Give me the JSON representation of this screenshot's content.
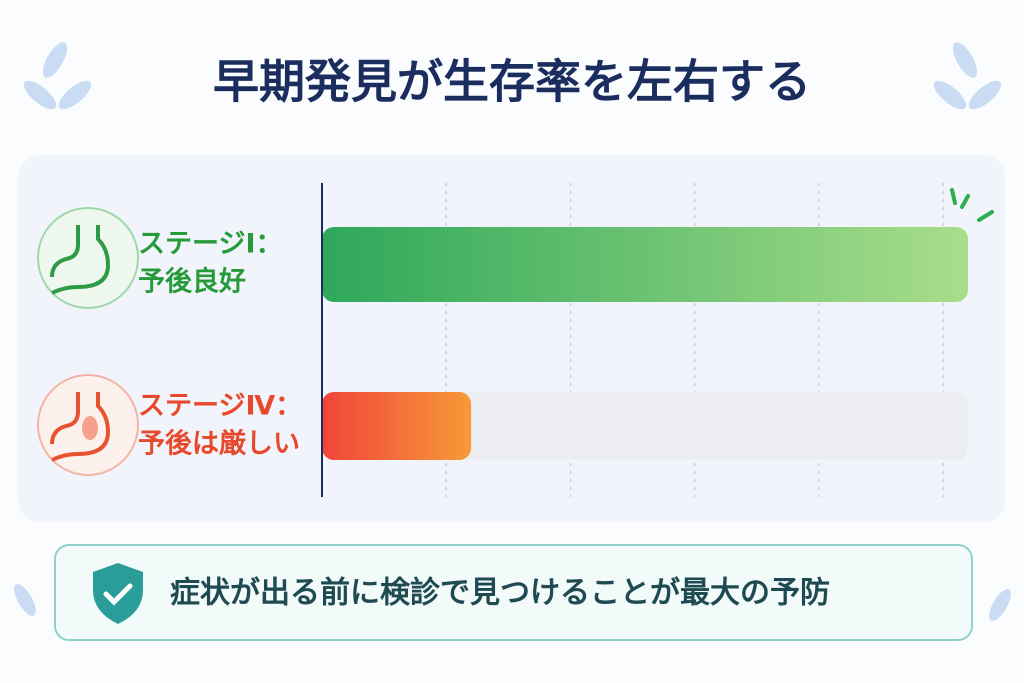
{
  "chart_data": {
    "type": "bar",
    "orientation": "horizontal",
    "title": "早期発見が生存率を左右する",
    "categories": [
      [
        "ステージⅠ：",
        "予後良好"
      ],
      [
        "ステージⅣ：",
        "予後は厳しい"
      ]
    ],
    "values": [
      5.2,
      1.2
    ],
    "bar_colors": [
      [
        "#2ea85a",
        "#a9dd8a"
      ],
      [
        "#f0443a",
        "#f79a38"
      ]
    ],
    "label_colors": [
      "#279a3a",
      "#e8482c"
    ],
    "xlim": [
      0,
      5.2
    ],
    "xticks": [
      1,
      2,
      3,
      4,
      5
    ],
    "grid": true,
    "footer_text": "症状が出る前に検診で見つけることが最大の予防"
  }
}
